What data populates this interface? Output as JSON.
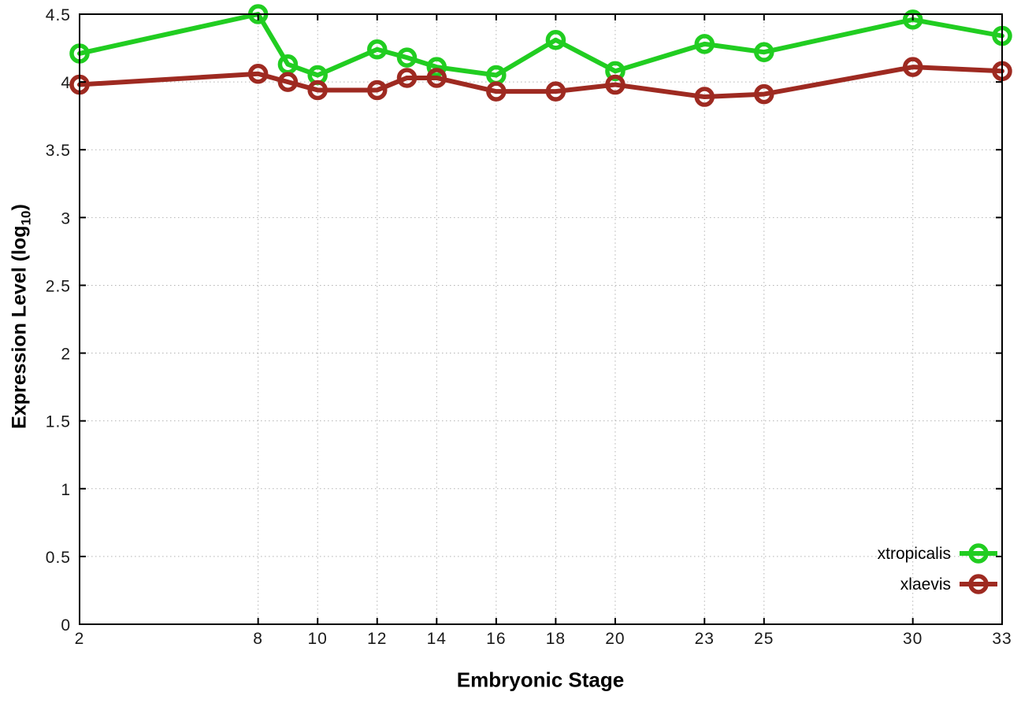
{
  "figure": {
    "background": "#ffffff",
    "border_color": "#000000",
    "grid_color": "#b3b3b3",
    "tick_label_color": "#1a1a1a"
  },
  "axis_labels": {
    "x": "Embryonic Stage",
    "y_main": "Expression Level (log",
    "y_sub": "10",
    "y_close": ")"
  },
  "chart_data": {
    "type": "line",
    "title": "",
    "xlabel": "Embryonic Stage",
    "ylabel": "Expression Level (log10)",
    "x": [
      2,
      8,
      9,
      10,
      12,
      13,
      14,
      16,
      18,
      20,
      23,
      25,
      30,
      33
    ],
    "xticks": [
      2,
      8,
      10,
      12,
      14,
      16,
      18,
      20,
      23,
      25,
      30,
      33
    ],
    "yticks": [
      "0",
      "0.5",
      "1",
      "1.5",
      "2",
      "2.5",
      "3",
      "3.5",
      "4",
      "4.5"
    ],
    "xlim": [
      2,
      33
    ],
    "ylim": [
      0,
      4.5
    ],
    "grid": true,
    "legend_position": "bottom-right",
    "marker": "open-circle",
    "series": [
      {
        "name": "xtropicalis",
        "color": "#21cd21",
        "values": [
          4.21,
          4.5,
          4.13,
          4.05,
          4.24,
          4.18,
          4.11,
          4.05,
          4.31,
          4.08,
          4.28,
          4.22,
          4.46,
          4.34
        ]
      },
      {
        "name": "xlaevis",
        "color": "#9e2a21",
        "values": [
          3.98,
          4.06,
          4.0,
          3.94,
          3.94,
          4.03,
          4.03,
          3.93,
          3.93,
          3.98,
          3.89,
          3.91,
          4.11,
          4.08
        ]
      }
    ]
  },
  "legend": {
    "items": [
      {
        "label": "xtropicalis",
        "color": "#21cd21"
      },
      {
        "label": "xlaevis",
        "color": "#9e2a21"
      }
    ]
  }
}
